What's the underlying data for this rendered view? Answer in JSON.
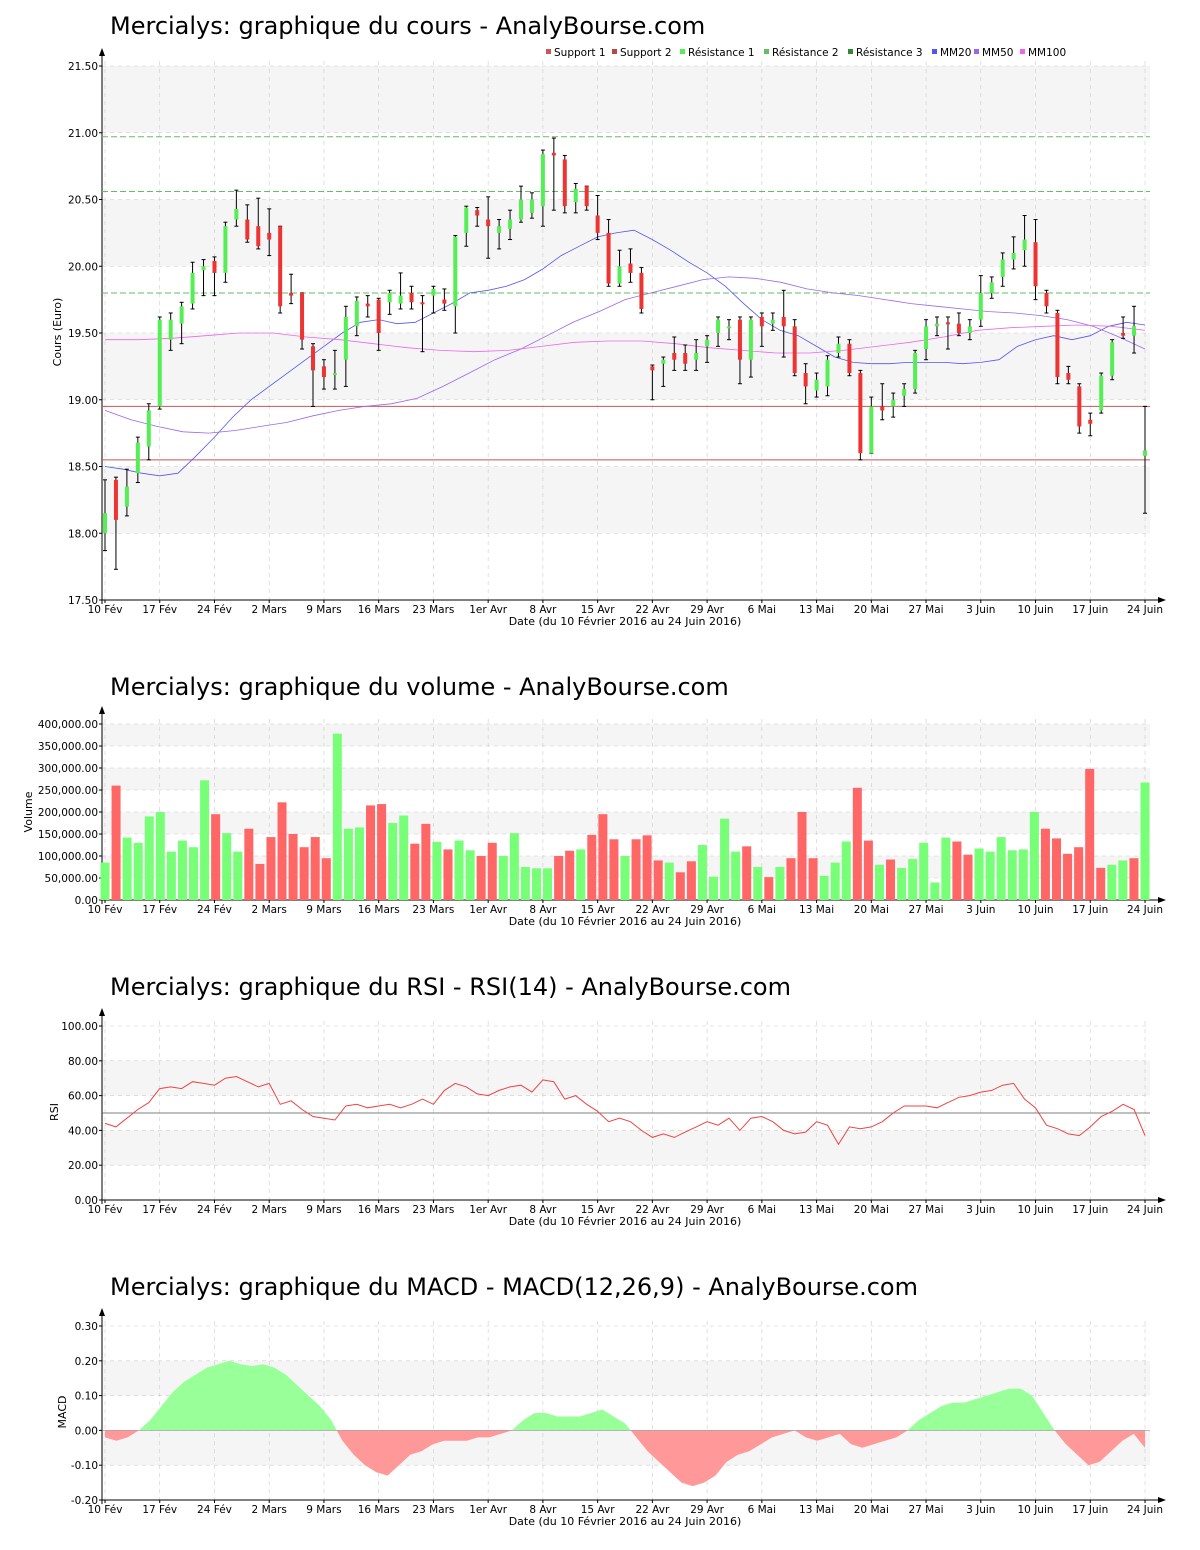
{
  "colors": {
    "up": "#55ee55",
    "down": "#ee3333",
    "vol_up": "#77ff77",
    "vol_down": "#ff6666",
    "support": "#cc5555",
    "resistance": "#66bb66",
    "mm20": "#5555ee",
    "mm50": "#9966ee",
    "mm100": "#ee66ee",
    "band": "#f5f5f5",
    "grid": "#cccccc",
    "rsi": "#ee4444",
    "macd_pos": "#99ff99",
    "macd_neg": "#ff9999"
  },
  "dates": [
    "10 Fév",
    "17 Fév",
    "24 Fév",
    "2 Mars",
    "9 Mars",
    "16 Mars",
    "23 Mars",
    "1er Avr",
    "8 Avr",
    "15 Avr",
    "22 Avr",
    "29 Avr",
    "6 Mai",
    "13 Mai",
    "20 Mai",
    "27 Mai",
    "3 Juin",
    "10 Juin",
    "17 Juin",
    "24 Juin"
  ],
  "xlabel": "Date (du 10 Février 2016 au 24 Juin 2016)",
  "chart_data": [
    {
      "type": "candlestick",
      "title": "Mercialys: graphique du cours - AnalyBourse.com",
      "ylabel": "Cours (Euro)",
      "ylim": [
        17.5,
        21.5
      ],
      "yticks": [
        "17.50",
        "18.00",
        "18.50",
        "19.00",
        "19.50",
        "20.00",
        "20.50",
        "21.00",
        "21.50"
      ],
      "legend": [
        "Support 1",
        "Support 2",
        "Résistance 1",
        "Résistance 2",
        "Résistance 3",
        "MM20",
        "MM50",
        "MM100"
      ],
      "support": [
        18.55,
        18.95
      ],
      "resistance": [
        19.8,
        20.56,
        20.97
      ],
      "ohlc": [
        [
          18.0,
          18.4,
          17.87,
          18.15
        ],
        [
          18.4,
          18.42,
          17.73,
          18.1
        ],
        [
          18.2,
          18.48,
          18.13,
          18.35
        ],
        [
          18.45,
          18.72,
          18.38,
          18.68
        ],
        [
          18.65,
          18.97,
          18.55,
          18.92
        ],
        [
          18.95,
          19.62,
          18.93,
          19.6
        ],
        [
          19.45,
          19.65,
          19.37,
          19.6
        ],
        [
          19.57,
          19.73,
          19.42,
          19.7
        ],
        [
          19.72,
          20.03,
          19.68,
          19.95
        ],
        [
          19.97,
          20.05,
          19.78,
          20.0
        ],
        [
          20.04,
          20.07,
          19.78,
          19.95
        ],
        [
          19.95,
          20.33,
          19.88,
          20.3
        ],
        [
          20.35,
          20.57,
          20.3,
          20.43
        ],
        [
          20.35,
          20.46,
          20.18,
          20.2
        ],
        [
          20.3,
          20.51,
          20.13,
          20.15
        ],
        [
          20.25,
          20.43,
          20.08,
          20.2
        ],
        [
          20.3,
          20.3,
          19.65,
          19.7
        ],
        [
          19.8,
          19.94,
          19.72,
          19.78
        ],
        [
          19.8,
          19.8,
          19.38,
          19.45
        ],
        [
          19.4,
          19.42,
          18.95,
          19.22
        ],
        [
          19.25,
          19.3,
          19.08,
          19.17
        ],
        [
          19.2,
          19.37,
          19.08,
          19.2
        ],
        [
          19.3,
          19.7,
          19.1,
          19.62
        ],
        [
          19.55,
          19.77,
          19.48,
          19.74
        ],
        [
          19.72,
          19.78,
          19.62,
          19.7
        ],
        [
          19.75,
          19.76,
          19.37,
          19.5
        ],
        [
          19.73,
          19.82,
          19.64,
          19.8
        ],
        [
          19.72,
          19.95,
          19.68,
          19.78
        ],
        [
          19.8,
          19.85,
          19.68,
          19.73
        ],
        [
          19.73,
          19.78,
          19.36,
          19.72
        ],
        [
          19.78,
          19.85,
          19.65,
          19.83
        ],
        [
          19.75,
          19.83,
          19.67,
          19.72
        ],
        [
          19.7,
          20.23,
          19.5,
          20.22
        ],
        [
          20.25,
          20.45,
          20.15,
          20.44
        ],
        [
          20.42,
          20.44,
          20.3,
          20.38
        ],
        [
          20.35,
          20.52,
          20.06,
          20.3
        ],
        [
          20.25,
          20.35,
          20.13,
          20.3
        ],
        [
          20.28,
          20.42,
          20.2,
          20.35
        ],
        [
          20.35,
          20.6,
          20.33,
          20.5
        ],
        [
          20.4,
          20.55,
          20.36,
          20.5
        ],
        [
          20.45,
          20.87,
          20.3,
          20.84
        ],
        [
          20.85,
          20.96,
          20.42,
          20.83
        ],
        [
          20.8,
          20.83,
          20.4,
          20.45
        ],
        [
          20.48,
          20.62,
          20.4,
          20.58
        ],
        [
          20.6,
          20.6,
          20.42,
          20.45
        ],
        [
          20.38,
          20.53,
          20.2,
          20.25
        ],
        [
          20.25,
          20.35,
          19.85,
          19.87
        ],
        [
          19.87,
          20.12,
          19.85,
          20.0
        ],
        [
          20.02,
          20.13,
          19.88,
          19.95
        ],
        [
          19.95,
          19.99,
          19.65,
          19.68
        ],
        [
          19.25,
          19.26,
          19.0,
          19.22
        ],
        [
          19.27,
          19.32,
          19.1,
          19.3
        ],
        [
          19.35,
          19.47,
          19.22,
          19.3
        ],
        [
          19.35,
          19.41,
          19.22,
          19.27
        ],
        [
          19.3,
          19.45,
          19.22,
          19.35
        ],
        [
          19.4,
          19.48,
          19.28,
          19.45
        ],
        [
          19.5,
          19.62,
          19.4,
          19.6
        ],
        [
          19.55,
          19.6,
          19.45,
          19.55
        ],
        [
          19.6,
          19.62,
          19.12,
          19.3
        ],
        [
          19.3,
          19.62,
          19.17,
          19.6
        ],
        [
          19.62,
          19.65,
          19.4,
          19.55
        ],
        [
          19.57,
          19.65,
          19.52,
          19.6
        ],
        [
          19.62,
          19.82,
          19.32,
          19.55
        ],
        [
          19.55,
          19.6,
          19.18,
          19.2
        ],
        [
          19.2,
          19.27,
          18.97,
          19.1
        ],
        [
          19.07,
          19.2,
          19.02,
          19.15
        ],
        [
          19.1,
          19.33,
          19.03,
          19.3
        ],
        [
          19.35,
          19.47,
          19.32,
          19.42
        ],
        [
          19.42,
          19.45,
          19.18,
          19.2
        ],
        [
          19.2,
          19.22,
          18.55,
          18.6
        ],
        [
          18.6,
          19.02,
          18.6,
          18.95
        ],
        [
          18.95,
          19.12,
          18.85,
          18.92
        ],
        [
          18.95,
          19.05,
          18.87,
          19.0
        ],
        [
          19.03,
          19.12,
          18.95,
          19.08
        ],
        [
          19.08,
          19.37,
          19.05,
          19.35
        ],
        [
          19.38,
          19.6,
          19.3,
          19.55
        ],
        [
          19.55,
          19.62,
          19.48,
          19.57
        ],
        [
          19.58,
          19.62,
          19.38,
          19.57
        ],
        [
          19.57,
          19.65,
          19.48,
          19.5
        ],
        [
          19.5,
          19.6,
          19.45,
          19.55
        ],
        [
          19.6,
          19.93,
          19.55,
          19.8
        ],
        [
          19.8,
          19.92,
          19.76,
          19.88
        ],
        [
          19.92,
          20.1,
          19.85,
          20.05
        ],
        [
          20.05,
          20.22,
          19.98,
          20.1
        ],
        [
          20.12,
          20.38,
          20.0,
          20.2
        ],
        [
          20.18,
          20.35,
          19.75,
          19.85
        ],
        [
          19.8,
          19.82,
          19.65,
          19.7
        ],
        [
          19.65,
          19.67,
          19.12,
          19.17
        ],
        [
          19.2,
          19.25,
          19.12,
          19.15
        ],
        [
          19.1,
          19.12,
          18.75,
          18.8
        ],
        [
          18.85,
          18.9,
          18.73,
          18.82
        ],
        [
          18.92,
          19.2,
          18.9,
          19.18
        ],
        [
          19.18,
          19.45,
          19.15,
          19.43
        ],
        [
          19.5,
          19.62,
          19.46,
          19.48
        ],
        [
          19.48,
          19.7,
          19.35,
          19.55
        ],
        [
          18.58,
          18.95,
          18.15,
          18.62
        ]
      ],
      "mm20": [
        18.5,
        18.48,
        18.45,
        18.43,
        18.45,
        18.58,
        18.72,
        18.87,
        19.0,
        19.1,
        19.2,
        19.3,
        19.4,
        19.5,
        19.58,
        19.6,
        19.57,
        19.58,
        19.65,
        19.72,
        19.8,
        19.82,
        19.85,
        19.9,
        19.98,
        20.08,
        20.15,
        20.22,
        20.25,
        20.27,
        20.2,
        20.12,
        20.03,
        19.95,
        19.85,
        19.72,
        19.6,
        19.52,
        19.48,
        19.4,
        19.32,
        19.28,
        19.27,
        19.27,
        19.28,
        19.28,
        19.28,
        19.27,
        19.28,
        19.3,
        19.4,
        19.45,
        19.48,
        19.45,
        19.48,
        19.55,
        19.58,
        19.56
      ],
      "mm50": [
        18.92,
        18.85,
        18.8,
        18.76,
        18.75,
        18.77,
        18.8,
        18.83,
        18.88,
        18.92,
        18.95,
        18.97,
        19.01,
        19.1,
        19.2,
        19.3,
        19.38,
        19.48,
        19.58,
        19.66,
        19.75,
        19.8,
        19.85,
        19.9,
        19.92,
        19.91,
        19.88,
        19.83,
        19.8,
        19.78,
        19.75,
        19.72,
        19.7,
        19.68,
        19.66,
        19.65,
        19.63,
        19.6,
        19.55,
        19.47,
        19.38
      ],
      "mm100": [
        19.45,
        19.45,
        19.46,
        19.48,
        19.5,
        19.5,
        19.47,
        19.45,
        19.42,
        19.39,
        19.37,
        19.36,
        19.37,
        19.4,
        19.43,
        19.44,
        19.44,
        19.42,
        19.39,
        19.37,
        19.35,
        19.35,
        19.37,
        19.4,
        19.43,
        19.47,
        19.52,
        19.54,
        19.55,
        19.56,
        19.55,
        19.52
      ]
    },
    {
      "type": "bar",
      "title": "Mercialys: graphique du volume - AnalyBourse.com",
      "ylabel": "Volume",
      "ylim": [
        0,
        400000
      ],
      "yticks": [
        "0.00",
        "50,000.00",
        "100,000.00",
        "150,000.00",
        "200,000.00",
        "250,000.00",
        "300,000.00",
        "350,000.00",
        "400,000.00"
      ],
      "values": [
        85000,
        260000,
        142000,
        130000,
        190000,
        200000,
        110000,
        135000,
        120000,
        272000,
        195000,
        152000,
        110000,
        162000,
        82000,
        143000,
        222000,
        150000,
        120000,
        143000,
        95000,
        378000,
        162000,
        165000,
        215000,
        218000,
        175000,
        192000,
        128000,
        173000,
        132000,
        115000,
        135000,
        113000,
        100000,
        130000,
        100000,
        152000,
        75000,
        72000,
        72000,
        100000,
        112000,
        115000,
        148000,
        195000,
        138000,
        100000,
        138000,
        147000,
        90000,
        85000,
        63000,
        88000,
        125000,
        53000,
        185000,
        110000,
        122000,
        75000,
        52000,
        75000,
        95000,
        200000,
        95000,
        55000,
        85000,
        133000,
        255000,
        135000,
        80000,
        92000,
        73000,
        93000,
        130000,
        40000,
        142000,
        133000,
        103000,
        117000,
        110000,
        143000,
        113000,
        115000,
        200000,
        162000,
        140000,
        105000,
        120000,
        298000,
        73000,
        80000,
        90000,
        95000,
        267000
      ]
    },
    {
      "type": "line",
      "title": "Mercialys: graphique du RSI - RSI(14) - AnalyBourse.com",
      "ylabel": "RSI",
      "ylim": [
        0,
        100
      ],
      "yticks": [
        "0.00",
        "20.00",
        "40.00",
        "60.00",
        "80.00",
        "100.00"
      ],
      "reference": 50,
      "values": [
        44,
        42,
        47,
        52,
        56,
        64,
        65,
        64,
        68,
        67,
        66,
        70,
        71,
        68,
        65,
        67,
        55,
        57,
        52,
        48,
        47,
        46,
        54,
        55,
        53,
        54,
        55,
        53,
        55,
        58,
        55,
        63,
        67,
        65,
        61,
        60,
        63,
        65,
        66,
        62,
        69,
        68,
        58,
        60,
        55,
        51,
        45,
        47,
        45,
        40,
        36,
        38,
        36,
        39,
        42,
        45,
        43,
        47,
        40,
        47,
        48,
        45,
        40,
        38,
        39,
        45,
        43,
        32,
        42,
        41,
        42,
        45,
        50,
        54,
        54,
        54,
        53,
        56,
        59,
        60,
        62,
        63,
        66,
        67,
        58,
        53,
        43,
        41,
        38,
        37,
        42,
        48,
        51,
        55,
        52,
        37
      ]
    },
    {
      "type": "area",
      "title": "Mercialys: graphique du MACD - MACD(12,26,9) - AnalyBourse.com",
      "ylabel": "MACD",
      "ylim": [
        -0.2,
        0.3
      ],
      "yticks": [
        "-0.20",
        "-0.10",
        "0.00",
        "0.10",
        "0.20",
        "0.30"
      ],
      "values": [
        -0.02,
        -0.03,
        -0.02,
        0.0,
        0.03,
        0.07,
        0.11,
        0.14,
        0.16,
        0.18,
        0.19,
        0.2,
        0.19,
        0.185,
        0.19,
        0.18,
        0.16,
        0.13,
        0.1,
        0.07,
        0.03,
        -0.03,
        -0.07,
        -0.1,
        -0.12,
        -0.13,
        -0.1,
        -0.07,
        -0.06,
        -0.04,
        -0.03,
        -0.03,
        -0.03,
        -0.02,
        -0.02,
        -0.01,
        0.0,
        0.03,
        0.05,
        0.05,
        0.04,
        0.04,
        0.04,
        0.05,
        0.06,
        0.04,
        0.02,
        -0.02,
        -0.06,
        -0.09,
        -0.12,
        -0.15,
        -0.16,
        -0.15,
        -0.13,
        -0.09,
        -0.07,
        -0.06,
        -0.04,
        -0.02,
        -0.01,
        0.0,
        -0.02,
        -0.03,
        -0.02,
        -0.01,
        -0.04,
        -0.05,
        -0.04,
        -0.03,
        -0.02,
        0.0,
        0.03,
        0.05,
        0.07,
        0.08,
        0.08,
        0.09,
        0.1,
        0.11,
        0.12,
        0.12,
        0.1,
        0.05,
        0.0,
        -0.04,
        -0.07,
        -0.1,
        -0.09,
        -0.06,
        -0.03,
        -0.01,
        -0.05
      ]
    }
  ]
}
